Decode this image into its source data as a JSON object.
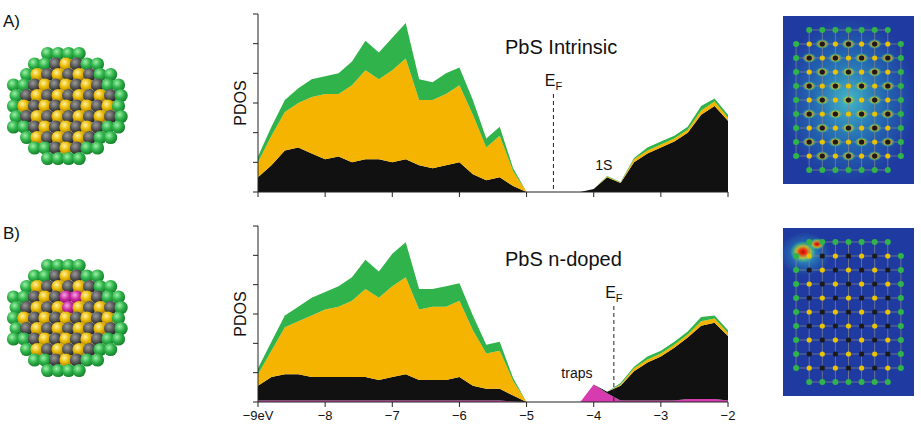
{
  "chart_data": [
    {
      "type": "area",
      "stacked": true,
      "label": "A)",
      "title": "PbS Intrinsic",
      "y_label": "PDOS",
      "x": [
        -9,
        -8.8,
        -8.6,
        -8.4,
        -8.2,
        -8,
        -7.8,
        -7.6,
        -7.4,
        -7.2,
        -7,
        -6.8,
        -6.6,
        -6.4,
        -6.2,
        -6,
        -5.8,
        -5.6,
        -5.4,
        -5.2,
        -5,
        -4.8,
        -4.6,
        -4.4,
        -4.2,
        -4,
        -3.8,
        -3.6,
        -3.4,
        -3.2,
        -3,
        -2.8,
        -2.6,
        -2.4,
        -2.2,
        -2
      ],
      "series": [
        {
          "color": "#111111",
          "values": [
            0.5,
            0.9,
            1.4,
            1.5,
            1.3,
            1.1,
            1.2,
            1.0,
            1.1,
            1.1,
            1.0,
            1.1,
            0.9,
            0.8,
            0.9,
            1.0,
            0.6,
            0.4,
            0.5,
            0.2,
            0,
            0,
            0,
            0,
            0,
            0.1,
            0.5,
            0.3,
            1.0,
            1.3,
            1.5,
            1.7,
            2.0,
            2.6,
            2.9,
            2.4
          ]
        },
        {
          "color": "#f5b400",
          "values": [
            0.5,
            1.0,
            1.3,
            1.5,
            1.9,
            2.2,
            2.1,
            2.6,
            3.0,
            2.7,
            3.1,
            3.4,
            2.2,
            2.3,
            2.4,
            2.6,
            2.0,
            1.1,
            1.4,
            0.5,
            0,
            0,
            0,
            0,
            0,
            0,
            0.02,
            0.02,
            0.1,
            0.1,
            0.1,
            0.1,
            0.1,
            0.15,
            0.15,
            0.1
          ]
        },
        {
          "color": "#2fb34a",
          "values": [
            0.2,
            0.3,
            0.4,
            0.5,
            0.6,
            0.6,
            0.7,
            0.8,
            1.0,
            0.9,
            1.1,
            1.2,
            0.7,
            0.6,
            0.7,
            0.6,
            0.5,
            0.3,
            0.3,
            0.1,
            0,
            0,
            0,
            0,
            0,
            0,
            0.02,
            0.02,
            0.05,
            0.1,
            0.1,
            0.1,
            0.1,
            0.15,
            0.1,
            0.1
          ]
        }
      ],
      "xlim": [
        -9,
        -2
      ],
      "xticks": [
        {
          "value": -9,
          "label": "−9eV"
        },
        {
          "value": -8,
          "label": "−8"
        },
        {
          "value": -7,
          "label": "−7"
        },
        {
          "value": -6,
          "label": "−6"
        },
        {
          "value": -5,
          "label": "−5"
        },
        {
          "value": -4,
          "label": "−4"
        },
        {
          "value": -3,
          "label": "−3"
        },
        {
          "value": -2,
          "label": "−2"
        }
      ],
      "ylim": [
        0,
        6
      ],
      "yticks": [
        0,
        1,
        2,
        3,
        4,
        5,
        6
      ],
      "tick_labels": false,
      "fermi_level": {
        "text": "E",
        "sub": "F",
        "x": -4.6
      },
      "annotations": [
        {
          "text": "1S",
          "x": -3.85
        }
      ]
    },
    {
      "type": "area",
      "stacked": true,
      "label": "B)",
      "title": "PbS n-doped",
      "y_label": "PDOS",
      "x": [
        -9,
        -8.8,
        -8.6,
        -8.4,
        -8.2,
        -8,
        -7.8,
        -7.6,
        -7.4,
        -7.2,
        -7,
        -6.8,
        -6.6,
        -6.4,
        -6.2,
        -6,
        -5.8,
        -5.6,
        -5.4,
        -5.2,
        -5,
        -4.8,
        -4.6,
        -4.4,
        -4.2,
        -4,
        -3.8,
        -3.6,
        -3.4,
        -3.2,
        -3,
        -2.8,
        -2.6,
        -2.4,
        -2.2,
        -2
      ],
      "series": [
        {
          "color": "#d63bb0",
          "values": [
            0.05,
            0.05,
            0.05,
            0.05,
            0.05,
            0.05,
            0.05,
            0.05,
            0.05,
            0.05,
            0.05,
            0.05,
            0.05,
            0.05,
            0.05,
            0.05,
            0.05,
            0.05,
            0.05,
            0.02,
            0,
            0,
            0,
            0,
            0,
            0.6,
            0.3,
            0.05,
            0.05,
            0.05,
            0.05,
            0.05,
            0.1,
            0.1,
            0.1,
            0.05
          ]
        },
        {
          "color": "#111111",
          "values": [
            0.5,
            0.8,
            0.9,
            0.9,
            0.8,
            0.8,
            0.8,
            0.8,
            0.8,
            0.7,
            0.8,
            0.9,
            0.7,
            0.7,
            0.7,
            0.8,
            0.5,
            0.4,
            0.4,
            0.2,
            0,
            0,
            0,
            0,
            0,
            0,
            0.05,
            0.5,
            1.0,
            1.3,
            1.5,
            1.8,
            2.1,
            2.5,
            2.6,
            2.2
          ]
        },
        {
          "color": "#f5b400",
          "values": [
            0.4,
            0.9,
            1.6,
            1.8,
            2.1,
            2.3,
            2.4,
            2.6,
            3.0,
            2.8,
            3.1,
            3.3,
            2.4,
            2.5,
            2.5,
            2.6,
            1.9,
            1.2,
            1.3,
            0.5,
            0,
            0,
            0,
            0,
            0,
            0,
            0,
            0.05,
            0.1,
            0.1,
            0.1,
            0.1,
            0.1,
            0.15,
            0.15,
            0.1
          ]
        },
        {
          "color": "#2fb34a",
          "values": [
            0.2,
            0.3,
            0.4,
            0.5,
            0.6,
            0.6,
            0.7,
            0.8,
            1.0,
            0.9,
            1.1,
            1.2,
            0.7,
            0.6,
            0.7,
            0.6,
            0.5,
            0.3,
            0.3,
            0.1,
            0,
            0,
            0,
            0,
            0,
            0,
            0,
            0.05,
            0.05,
            0.1,
            0.1,
            0.1,
            0.1,
            0.15,
            0.1,
            0.1
          ]
        }
      ],
      "xlim": [
        -9,
        -2
      ],
      "xticks": [
        {
          "value": -9,
          "label": "−9eV"
        },
        {
          "value": -8,
          "label": "−8"
        },
        {
          "value": -7,
          "label": "−7"
        },
        {
          "value": -6,
          "label": "−6"
        },
        {
          "value": -5,
          "label": "−5"
        },
        {
          "value": -4,
          "label": "−4"
        },
        {
          "value": -3,
          "label": "−3"
        },
        {
          "value": -2,
          "label": "−2"
        }
      ],
      "ylim": [
        0,
        6
      ],
      "yticks": [
        0,
        1,
        2,
        3,
        4,
        5,
        6
      ],
      "tick_labels": "x",
      "fermi_level": {
        "text": "E",
        "sub": "F",
        "x": -3.7
      },
      "annotations": [
        {
          "text": "traps",
          "x": -4.25
        }
      ]
    }
  ]
}
